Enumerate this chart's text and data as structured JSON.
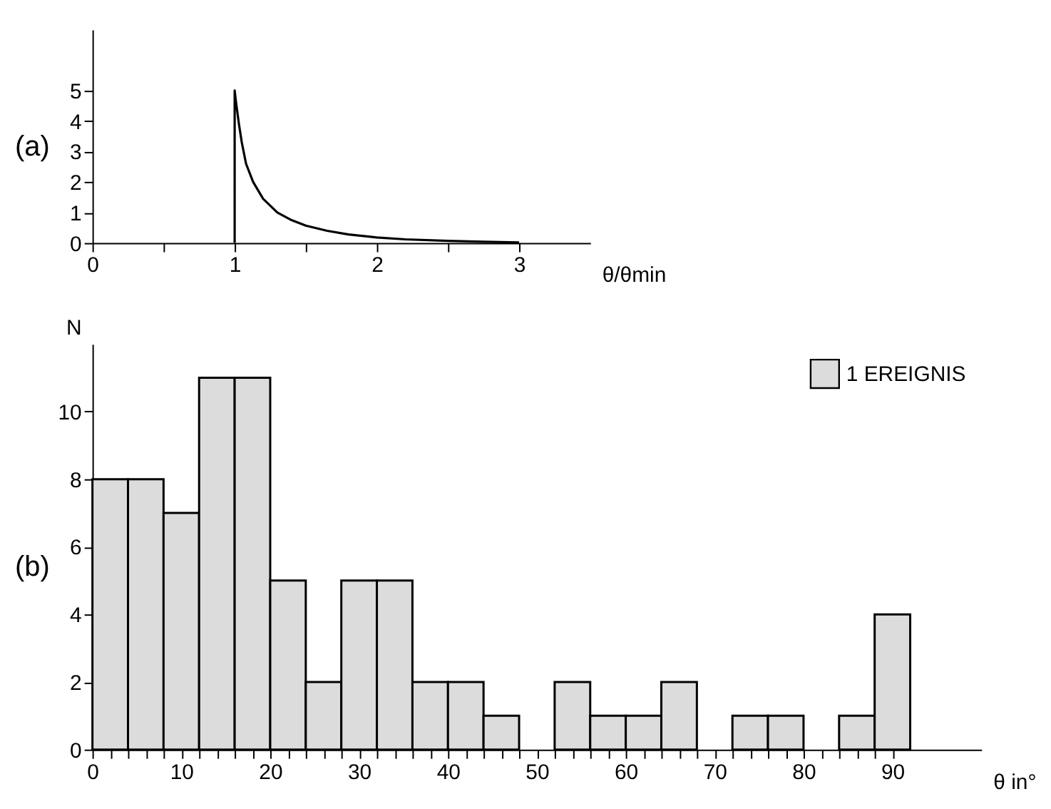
{
  "chart_data": [
    {
      "type": "line",
      "annotations": [
        "(a)"
      ],
      "xlabel": "θ/θmin",
      "x": [
        1,
        1,
        1.01,
        1.03,
        1.05,
        1.08,
        1.13,
        1.2,
        1.3,
        1.4,
        1.5,
        1.65,
        1.8,
        2.0,
        2.2,
        2.5,
        2.75,
        3.0
      ],
      "series": [
        {
          "color": "#000000",
          "values": [
            0,
            5,
            4.6,
            3.9,
            3.3,
            2.6,
            2.0,
            1.45,
            1.0,
            0.75,
            0.57,
            0.4,
            0.28,
            0.18,
            0.12,
            0.07,
            0.04,
            0.02
          ]
        }
      ],
      "xlim": [
        0,
        3.5
      ],
      "ylim": [
        0,
        7
      ],
      "xticks": [
        0,
        {
          "value": 0.5,
          "label": null
        },
        1,
        {
          "value": 1.5,
          "label": null
        },
        2,
        {
          "value": 2.5,
          "label": null
        },
        3
      ],
      "yticks": [
        0,
        1,
        2,
        3,
        4,
        5
      ],
      "grid": false,
      "marker": "none",
      "line_style": "solid"
    },
    {
      "type": "histogram",
      "annotations": [
        "(b)"
      ],
      "xlabel": "θ in°",
      "ylabel": "N",
      "bins": [
        0,
        4,
        8,
        12,
        16,
        20,
        24,
        28,
        32,
        36,
        40,
        44,
        48,
        52,
        56,
        60,
        64,
        68,
        72,
        76,
        80,
        84,
        88,
        92
      ],
      "series": [
        {
          "name": "1 EREIGNIS",
          "color": "#dcdcdc",
          "values": [
            8,
            8,
            7,
            11,
            11,
            5,
            2,
            5,
            5,
            2,
            2,
            1,
            0,
            2,
            1,
            1,
            2,
            0,
            1,
            1,
            0,
            1,
            4
          ]
        }
      ],
      "xlim": [
        0,
        100
      ],
      "ylim": [
        0,
        12
      ],
      "xticks": [
        0,
        {
          "value": 2,
          "label": null
        },
        {
          "value": 4,
          "label": null
        },
        {
          "value": 6,
          "label": null
        },
        {
          "value": 8,
          "label": null
        },
        10,
        {
          "value": 12,
          "label": null
        },
        {
          "value": 14,
          "label": null
        },
        {
          "value": 16,
          "label": null
        },
        {
          "value": 18,
          "label": null
        },
        20,
        {
          "value": 22,
          "label": null
        },
        {
          "value": 24,
          "label": null
        },
        {
          "value": 26,
          "label": null
        },
        {
          "value": 28,
          "label": null
        },
        30,
        {
          "value": 32,
          "label": null
        },
        {
          "value": 34,
          "label": null
        },
        {
          "value": 36,
          "label": null
        },
        {
          "value": 38,
          "label": null
        },
        40,
        {
          "value": 42,
          "label": null
        },
        {
          "value": 44,
          "label": null
        },
        {
          "value": 46,
          "label": null
        },
        {
          "value": 48,
          "label": null
        },
        50,
        {
          "value": 52,
          "label": null
        },
        {
          "value": 54,
          "label": null
        },
        {
          "value": 56,
          "label": null
        },
        {
          "value": 58,
          "label": null
        },
        60,
        {
          "value": 62,
          "label": null
        },
        {
          "value": 64,
          "label": null
        },
        {
          "value": 66,
          "label": null
        },
        {
          "value": 68,
          "label": null
        },
        70,
        {
          "value": 72,
          "label": null
        },
        {
          "value": 74,
          "label": null
        },
        {
          "value": 76,
          "label": null
        },
        {
          "value": 78,
          "label": null
        },
        80,
        {
          "value": 82,
          "label": null
        },
        {
          "value": 84,
          "label": null
        },
        {
          "value": 86,
          "label": null
        },
        {
          "value": 88,
          "label": null
        },
        90
      ],
      "yticks": [
        0,
        2,
        4,
        6,
        8,
        10
      ],
      "grid": false,
      "legend": "top right"
    }
  ]
}
